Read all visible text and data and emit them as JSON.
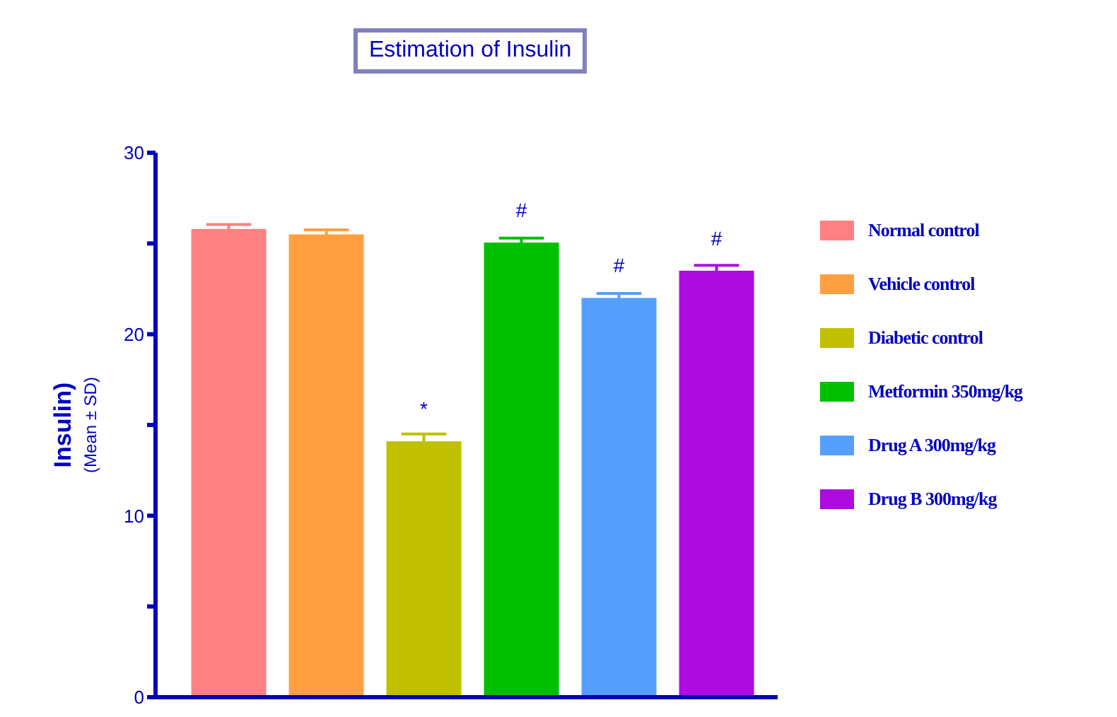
{
  "chart_data": {
    "type": "bar",
    "title": "Estimation of Insulin",
    "ylabel": "Insulin)",
    "subtitle": "(Mean ± SD)",
    "categories": [
      null
    ],
    "series": [
      {
        "name": "Normal control",
        "color": "#ff8080",
        "values": [
          25.8
        ],
        "errors": [
          0.25
        ]
      },
      {
        "name": "Vehicle control",
        "color": "#ff9f40",
        "values": [
          25.5
        ],
        "errors": [
          0.25
        ]
      },
      {
        "name": "Diabetic control",
        "color": "#c0c000",
        "values": [
          14.1
        ],
        "errors": [
          0.4
        ],
        "value_labels": [
          "*"
        ]
      },
      {
        "name": "Metformin 350mg/kg",
        "color": "#00c000",
        "values": [
          25.05
        ],
        "errors": [
          0.25
        ],
        "value_labels": [
          "#"
        ]
      },
      {
        "name": "Drug A 300mg/kg",
        "color": "#55a0ff",
        "values": [
          22.0
        ],
        "errors": [
          0.25
        ],
        "value_labels": [
          "#"
        ]
      },
      {
        "name": "Drug B 300mg/kg",
        "color": "#ae0be0",
        "values": [
          23.5
        ],
        "errors": [
          0.3
        ],
        "value_labels": [
          "#"
        ]
      }
    ],
    "ylim": [
      0,
      30
    ],
    "yticks": [
      0,
      {
        "value": 5,
        "label": null
      },
      10,
      {
        "value": 15,
        "label": null
      },
      20,
      {
        "value": 25,
        "label": null
      },
      30
    ],
    "grid": false,
    "legend": "right"
  }
}
